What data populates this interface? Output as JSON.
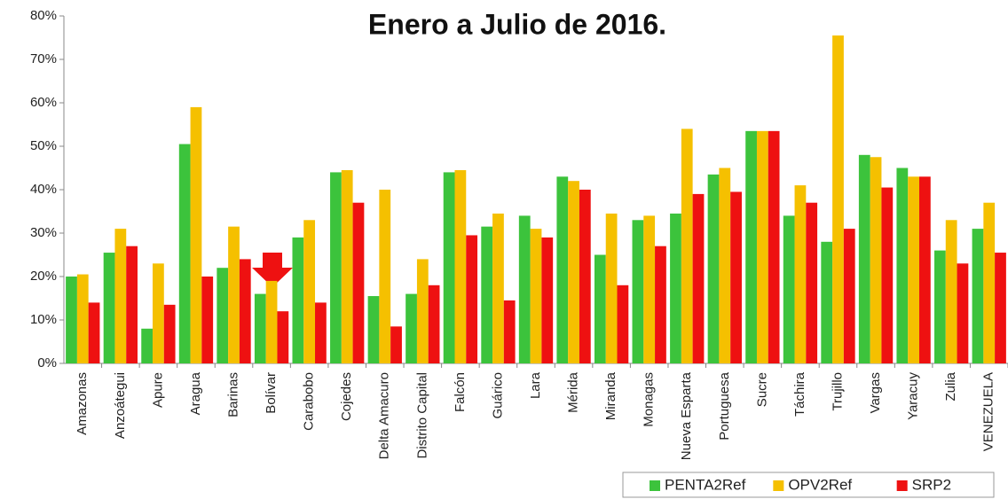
{
  "chart_data": {
    "type": "bar",
    "title": "Enero a Julio de 2016.",
    "categories": [
      "Amazonas",
      "Anzoátegui",
      "Apure",
      "Aragua",
      "Barinas",
      "Bolívar",
      "Carabobo",
      "Cojedes",
      "Delta Amacuro",
      "Distrito Capital",
      "Falcón",
      "Guárico",
      "Lara",
      "Mérida",
      "Miranda",
      "Monagas",
      "Nueva Esparta",
      "Portuguesa",
      "Sucre",
      "Táchira",
      "Trujillo",
      "Vargas",
      "Yaracuy",
      "Zulia",
      "VENEZUELA"
    ],
    "series": [
      {
        "name": "PENTA2Ref",
        "color": "#3cc33c",
        "values": [
          20,
          25.5,
          8,
          50.5,
          22,
          16,
          29,
          44,
          15.5,
          16,
          44,
          31.5,
          34,
          43,
          25,
          33,
          34.5,
          43.5,
          53.5,
          34,
          28,
          48,
          45,
          26,
          31
        ]
      },
      {
        "name": "OPV2Ref",
        "color": "#f5c000",
        "values": [
          20.5,
          31,
          23,
          59,
          31.5,
          19,
          33,
          44.5,
          40,
          24,
          44.5,
          34.5,
          31,
          42,
          34.5,
          34,
          54,
          45,
          53.5,
          41,
          75.5,
          47.5,
          43,
          33,
          37
        ]
      },
      {
        "name": "SRP2",
        "color": "#ee1111",
        "values": [
          14,
          27,
          13.5,
          20,
          24,
          12,
          14,
          37,
          8.5,
          18,
          29.5,
          14.5,
          29,
          40,
          18,
          27,
          39,
          39.5,
          53.5,
          37,
          31,
          40.5,
          43,
          23,
          25.5
        ]
      }
    ],
    "ylim": [
      0,
      80
    ],
    "yticks": [
      {
        "value": 0,
        "label": "0%"
      },
      {
        "value": 10,
        "label": "10%"
      },
      {
        "value": 20,
        "label": "20%"
      },
      {
        "value": 30,
        "label": "30%"
      },
      {
        "value": 40,
        "label": "40%"
      },
      {
        "value": 50,
        "label": "50%"
      },
      {
        "value": 60,
        "label": "60%"
      },
      {
        "value": 70,
        "label": "70%"
      },
      {
        "value": 80,
        "label": "80%"
      }
    ],
    "legend": "bottom-right"
  }
}
